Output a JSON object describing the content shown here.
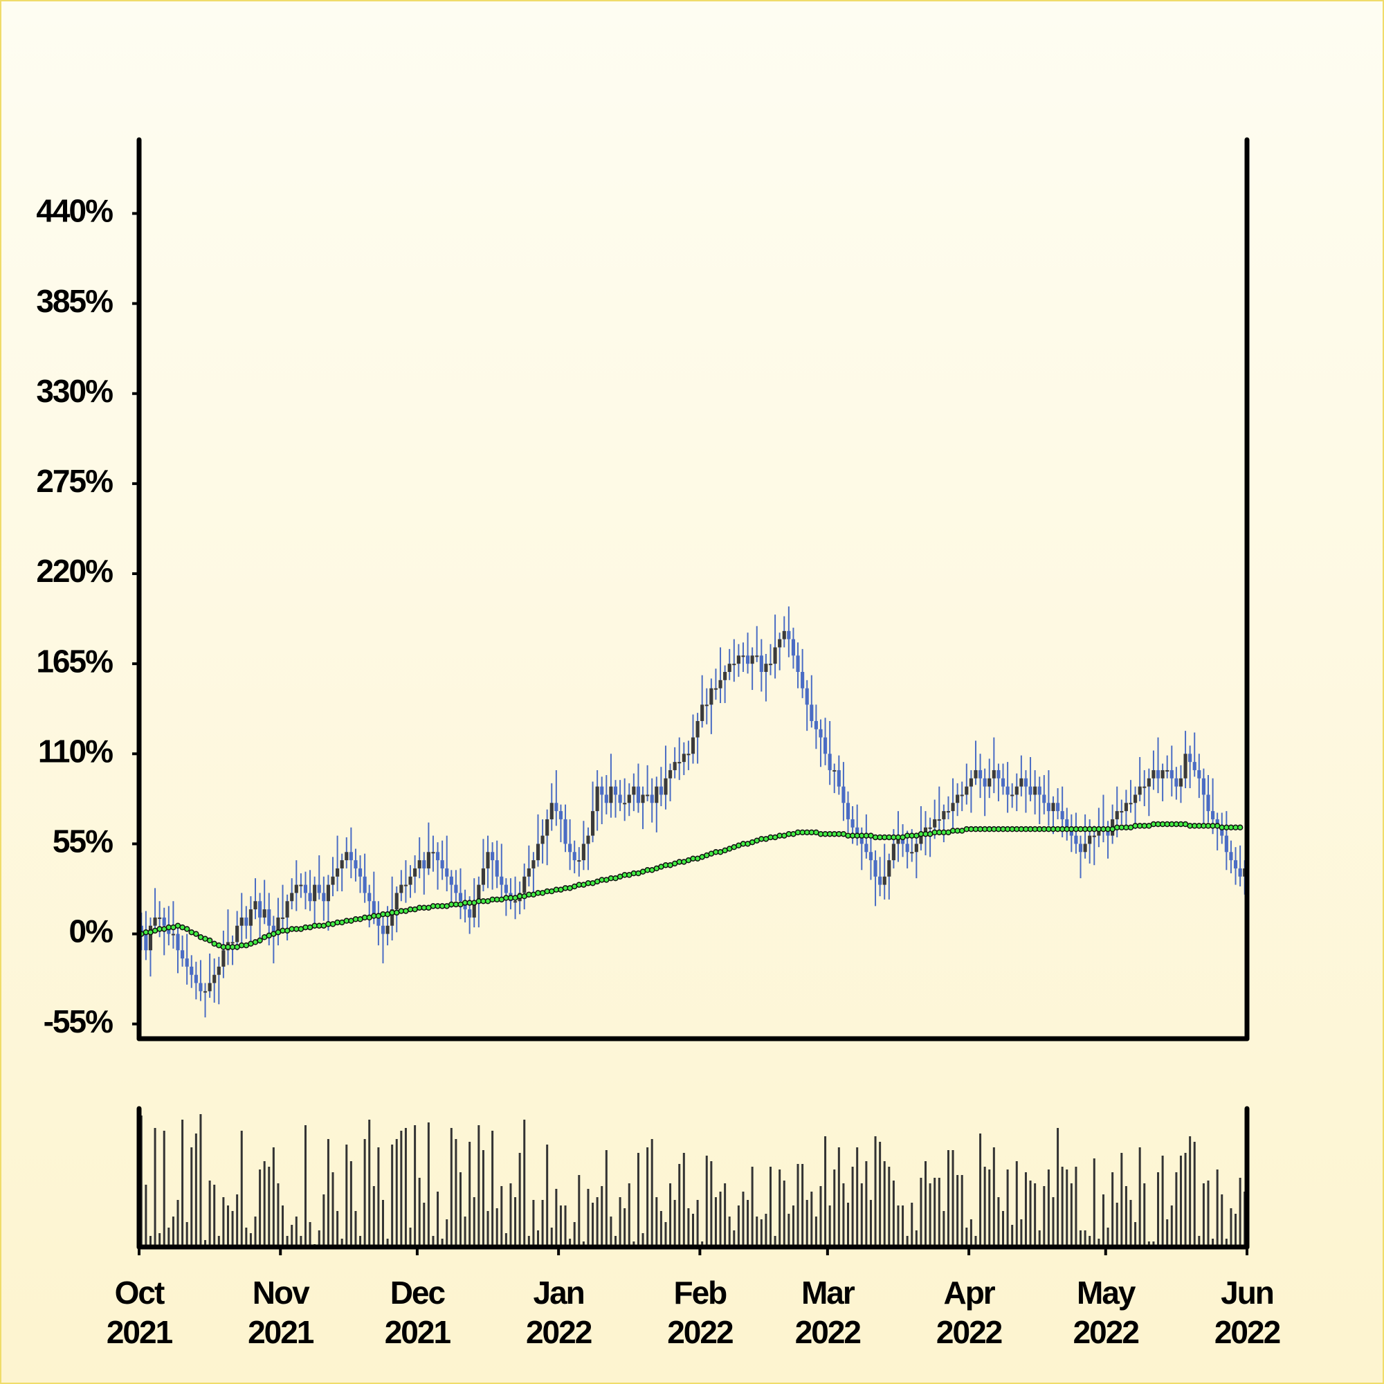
{
  "chart_data": {
    "type": "candlestick",
    "xlim": [
      0,
      243
    ],
    "xticks": [
      {
        "value": 0,
        "label": "Oct 2021"
      },
      {
        "value": 31,
        "label": "Nov 2021"
      },
      {
        "value": 61,
        "label": "Dec 2021"
      },
      {
        "value": 92,
        "label": "Jan 2022"
      },
      {
        "value": 123,
        "label": "Feb 2022"
      },
      {
        "value": 151,
        "label": "Mar 2022"
      },
      {
        "value": 182,
        "label": "Apr 2022"
      },
      {
        "value": 212,
        "label": "May 2022"
      },
      {
        "value": 243,
        "label": "Jun 2022"
      }
    ],
    "ylim": [
      -64,
      485
    ],
    "yticks": [
      {
        "value": -55,
        "label": "-55%"
      },
      {
        "value": 0,
        "label": "0%"
      },
      {
        "value": 55,
        "label": "55%"
      },
      {
        "value": 110,
        "label": "110%"
      },
      {
        "value": 165,
        "label": "165%"
      },
      {
        "value": 220,
        "label": "220%"
      },
      {
        "value": 275,
        "label": "275%"
      },
      {
        "value": 330,
        "label": "330%"
      },
      {
        "value": 385,
        "label": "385%"
      },
      {
        "value": 440,
        "label": "440%"
      }
    ],
    "volume_ylim": [
      0,
      100
    ],
    "up_color": "#3a3a3a",
    "down_color": "#4a6cc4",
    "wick_color": "#4a6cc4",
    "ma_color": "#44ee44",
    "volume_color": "#333333",
    "open": [
      5,
      0,
      -10,
      5,
      10,
      10,
      5,
      0,
      0,
      -10,
      -15,
      -20,
      -25,
      -30,
      -35,
      -35,
      -30,
      -25,
      -20,
      -10,
      -5,
      -5,
      5,
      10,
      5,
      15,
      20,
      10,
      15,
      5,
      0,
      10,
      10,
      20,
      25,
      30,
      30,
      25,
      20,
      30,
      25,
      20,
      30,
      35,
      40,
      45,
      50,
      45,
      40,
      35,
      25,
      20,
      10,
      5,
      0,
      5,
      15,
      25,
      30,
      30,
      35,
      40,
      45,
      40,
      50,
      50,
      45,
      40,
      35,
      30,
      25,
      20,
      15,
      10,
      20,
      30,
      40,
      50,
      45,
      35,
      30,
      25,
      20,
      20,
      25,
      35,
      40,
      45,
      55,
      60,
      70,
      80,
      75,
      70,
      55,
      50,
      45,
      45,
      55,
      60,
      75,
      90,
      85,
      80,
      90,
      85,
      80,
      80,
      85,
      90,
      80,
      85,
      85,
      80,
      90,
      85,
      95,
      100,
      105,
      105,
      110,
      110,
      120,
      130,
      140,
      140,
      150,
      150,
      155,
      160,
      165,
      165,
      170,
      170,
      165,
      170,
      170,
      160,
      165,
      165,
      175,
      180,
      185,
      180,
      170,
      160,
      150,
      140,
      130,
      125,
      120,
      110,
      100,
      100,
      90,
      80,
      70,
      65,
      60,
      55,
      50,
      45,
      35,
      30,
      35,
      45,
      55,
      60,
      55,
      50,
      50,
      55,
      60,
      65,
      65,
      70,
      70,
      75,
      75,
      80,
      85,
      85,
      90,
      95,
      100,
      95,
      90,
      95,
      100,
      95,
      90,
      85,
      85,
      90,
      95,
      90,
      85,
      90,
      85,
      80,
      75,
      80,
      75,
      70,
      65,
      60,
      55,
      50,
      55,
      60,
      60,
      65,
      65,
      60,
      70,
      75,
      75,
      80,
      80,
      85,
      90,
      90,
      95,
      100,
      95,
      100,
      100,
      95,
      90,
      95,
      110,
      105,
      100,
      95,
      85,
      75,
      70,
      65,
      60,
      50,
      45,
      40,
      35
    ],
    "high": [
      13,
      14,
      10,
      28,
      20,
      16,
      17,
      20,
      4,
      -1,
      0,
      -13,
      -17,
      -16,
      -30,
      -12,
      -15,
      -14,
      2,
      15,
      -1,
      14,
      25,
      17,
      23,
      34,
      25,
      33,
      25,
      11,
      22,
      30,
      24,
      34,
      45,
      37,
      38,
      39,
      35,
      48,
      35,
      36,
      47,
      60,
      49,
      59,
      65,
      52,
      48,
      49,
      30,
      38,
      20,
      11,
      17,
      35,
      29,
      39,
      45,
      42,
      48,
      59,
      50,
      68,
      60,
      56,
      57,
      60,
      39,
      39,
      40,
      27,
      23,
      34,
      35,
      58,
      60,
      56,
      57,
      55,
      34,
      34,
      35,
      32,
      43,
      54,
      50,
      73,
      70,
      76,
      92,
      100,
      79,
      79,
      70,
      57,
      53,
      69,
      65,
      93,
      100,
      96,
      97,
      110,
      94,
      94,
      95,
      92,
      98,
      104,
      90,
      103,
      95,
      96,
      102,
      115,
      104,
      114,
      120,
      117,
      118,
      134,
      135,
      158,
      150,
      156,
      162,
      175,
      164,
      174,
      180,
      177,
      178,
      184,
      175,
      188,
      180,
      171,
      177,
      195,
      184,
      194,
      200,
      187,
      178,
      174,
      155,
      158,
      140,
      131,
      132,
      130,
      104,
      109,
      105,
      87,
      78,
      79,
      65,
      73,
      60,
      51,
      47,
      55,
      49,
      64,
      75,
      67,
      63,
      64,
      60,
      78,
      75,
      71,
      82,
      90,
      79,
      84,
      95,
      92,
      93,
      104,
      100,
      118,
      110,
      101,
      107,
      120,
      104,
      104,
      105,
      92,
      98,
      109,
      100,
      108,
      100,
      96,
      97,
      100,
      84,
      89,
      90,
      77,
      73,
      74,
      60,
      73,
      70,
      66,
      77,
      85,
      69,
      79,
      90,
      82,
      88,
      94,
      90,
      108,
      100,
      101,
      112,
      120,
      104,
      109,
      115,
      102,
      103,
      124,
      115,
      123,
      110,
      101,
      97,
      95,
      74,
      74,
      75,
      57,
      53,
      54,
      45
    ],
    "low": [
      -10,
      -16,
      -26,
      1,
      -2,
      -13,
      -7,
      -9,
      -24,
      -20,
      -31,
      -33,
      -40,
      -41,
      -51,
      -39,
      -42,
      -43,
      -27,
      -19,
      -19,
      -10,
      -6,
      -3,
      -5,
      9,
      -6,
      6,
      -7,
      -18,
      -7,
      1,
      -4,
      15,
      14,
      22,
      15,
      14,
      4,
      21,
      8,
      2,
      23,
      26,
      26,
      40,
      34,
      32,
      25,
      19,
      4,
      6,
      -7,
      -18,
      -7,
      -4,
      1,
      20,
      19,
      22,
      25,
      34,
      24,
      36,
      38,
      27,
      33,
      26,
      16,
      20,
      9,
      7,
      0,
      4,
      4,
      26,
      28,
      27,
      28,
      21,
      11,
      15,
      9,
      12,
      15,
      29,
      24,
      41,
      43,
      42,
      63,
      66,
      56,
      50,
      39,
      37,
      35,
      39,
      39,
      56,
      63,
      67,
      73,
      71,
      71,
      75,
      69,
      72,
      75,
      74,
      64,
      81,
      68,
      62,
      78,
      76,
      81,
      95,
      94,
      97,
      100,
      104,
      104,
      126,
      128,
      122,
      143,
      141,
      141,
      155,
      154,
      157,
      160,
      159,
      149,
      166,
      148,
      142,
      158,
      156,
      161,
      175,
      169,
      162,
      150,
      144,
      124,
      126,
      113,
      102,
      103,
      91,
      86,
      85,
      69,
      62,
      55,
      54,
      39,
      46,
      33,
      17,
      23,
      21,
      21,
      40,
      44,
      47,
      40,
      44,
      34,
      51,
      48,
      47,
      58,
      61,
      56,
      70,
      64,
      72,
      75,
      79,
      74,
      91,
      83,
      72,
      83,
      86,
      81,
      85,
      74,
      77,
      75,
      84,
      74,
      81,
      73,
      67,
      73,
      66,
      61,
      70,
      59,
      57,
      50,
      49,
      34,
      46,
      43,
      42,
      53,
      56,
      46,
      55,
      59,
      67,
      65,
      74,
      64,
      81,
      78,
      72,
      88,
      86,
      81,
      95,
      84,
      82,
      80,
      89,
      89,
      96,
      83,
      67,
      68,
      61,
      51,
      55,
      39,
      37,
      30,
      29,
      24
    ],
    "close": [
      0,
      -10,
      5,
      10,
      10,
      5,
      0,
      0,
      -10,
      -15,
      -20,
      -25,
      -30,
      -35,
      -35,
      -30,
      -25,
      -20,
      -10,
      -5,
      -5,
      5,
      10,
      5,
      15,
      20,
      10,
      15,
      5,
      0,
      10,
      10,
      20,
      25,
      30,
      30,
      25,
      20,
      30,
      25,
      20,
      30,
      35,
      40,
      45,
      50,
      45,
      40,
      35,
      25,
      20,
      10,
      5,
      0,
      5,
      15,
      25,
      30,
      30,
      35,
      40,
      45,
      40,
      50,
      50,
      45,
      40,
      35,
      30,
      25,
      20,
      15,
      10,
      20,
      30,
      40,
      50,
      45,
      35,
      30,
      25,
      20,
      20,
      25,
      35,
      40,
      45,
      55,
      60,
      70,
      80,
      75,
      70,
      55,
      50,
      45,
      45,
      55,
      60,
      75,
      90,
      85,
      80,
      90,
      85,
      80,
      80,
      85,
      90,
      80,
      85,
      85,
      80,
      90,
      85,
      95,
      100,
      105,
      105,
      110,
      110,
      120,
      130,
      140,
      140,
      150,
      150,
      155,
      160,
      165,
      165,
      170,
      170,
      165,
      170,
      170,
      160,
      165,
      165,
      175,
      180,
      185,
      180,
      170,
      160,
      150,
      140,
      130,
      125,
      120,
      110,
      100,
      100,
      90,
      80,
      70,
      65,
      60,
      55,
      50,
      45,
      35,
      30,
      35,
      45,
      55,
      60,
      55,
      50,
      50,
      55,
      60,
      65,
      65,
      70,
      70,
      75,
      75,
      80,
      85,
      85,
      90,
      95,
      100,
      95,
      90,
      95,
      100,
      95,
      90,
      85,
      85,
      90,
      95,
      90,
      85,
      90,
      85,
      80,
      75,
      80,
      75,
      70,
      65,
      60,
      55,
      50,
      55,
      60,
      60,
      65,
      65,
      60,
      70,
      75,
      75,
      80,
      80,
      85,
      90,
      90,
      95,
      100,
      95,
      100,
      100,
      95,
      90,
      95,
      110,
      105,
      100,
      95,
      85,
      75,
      70,
      65,
      60,
      50,
      45,
      40,
      35,
      40
    ],
    "moving_average": [
      0,
      1,
      1,
      2,
      3,
      3,
      4,
      4,
      5,
      4,
      3,
      1,
      0,
      -2,
      -3,
      -4,
      -6,
      -7,
      -8,
      -8,
      -8,
      -8,
      -7,
      -7,
      -6,
      -5,
      -4,
      -2,
      -1,
      0,
      1,
      2,
      2,
      3,
      3,
      3,
      4,
      4,
      5,
      5,
      5,
      6,
      6,
      7,
      7,
      8,
      8,
      9,
      9,
      10,
      10,
      11,
      11,
      12,
      12,
      13,
      13,
      14,
      14,
      15,
      15,
      16,
      16,
      16,
      17,
      17,
      17,
      17,
      18,
      18,
      18,
      19,
      19,
      19,
      20,
      20,
      20,
      21,
      21,
      21,
      22,
      22,
      22,
      23,
      23,
      24,
      24,
      25,
      25,
      26,
      26,
      27,
      27,
      28,
      28,
      29,
      30,
      30,
      31,
      31,
      32,
      33,
      33,
      34,
      34,
      35,
      36,
      36,
      37,
      37,
      38,
      39,
      39,
      40,
      41,
      42,
      42,
      43,
      44,
      44,
      45,
      46,
      46,
      47,
      48,
      49,
      50,
      50,
      51,
      52,
      53,
      54,
      55,
      55,
      56,
      57,
      58,
      58,
      59,
      59,
      60,
      60,
      61,
      61,
      62,
      62,
      62,
      62,
      62,
      61,
      61,
      61,
      61,
      61,
      61,
      60,
      60,
      60,
      60,
      60,
      60,
      59,
      59,
      59,
      59,
      59,
      59,
      59,
      60,
      60,
      60,
      61,
      61,
      61,
      62,
      62,
      62,
      62,
      63,
      63,
      63,
      64,
      64,
      64,
      64,
      64,
      64,
      64,
      64,
      64,
      64,
      64,
      64,
      64,
      64,
      64,
      64,
      64,
      64,
      64,
      64,
      64,
      64,
      64,
      64,
      64,
      64,
      64,
      64,
      64,
      64,
      64,
      64,
      64,
      65,
      65,
      65,
      65,
      66,
      66,
      66,
      66,
      67,
      67,
      67,
      67,
      67,
      67,
      67,
      67,
      66,
      66,
      66,
      66,
      66,
      66,
      66,
      65,
      65,
      65,
      65,
      65
    ],
    "volume": [
      95,
      45,
      8,
      86,
      10,
      84,
      14,
      22,
      34,
      92,
      18,
      72,
      82,
      96,
      5,
      48,
      45,
      8,
      36,
      30,
      26,
      38,
      84,
      14,
      10,
      22,
      56,
      62,
      58,
      72,
      46,
      30,
      8,
      16,
      22,
      8,
      88,
      18,
      2,
      12,
      38,
      78,
      54,
      26,
      6,
      74,
      62,
      26,
      8,
      78,
      92,
      44,
      72,
      34,
      6,
      74,
      78,
      84,
      86,
      14,
      88,
      50,
      32,
      90,
      8,
      40,
      6,
      20,
      86,
      78,
      54,
      22,
      76,
      36,
      88,
      70,
      26,
      84,
      28,
      44,
      10,
      46,
      36,
      68,
      92,
      8,
      34,
      12,
      34,
      74,
      14,
      42,
      30,
      30,
      6,
      18,
      52,
      4,
      42,
      32,
      36,
      44,
      70,
      22,
      8,
      36,
      28,
      46,
      4,
      68,
      10,
      72,
      78,
      36,
      26,
      18,
      46,
      34,
      60,
      68,
      28,
      24,
      34,
      4,
      66,
      62,
      36,
      40,
      46,
      22,
      12,
      30,
      40,
      34,
      58,
      22,
      20,
      24,
      58,
      8,
      56,
      48,
      24,
      30,
      60,
      60,
      34,
      40,
      22,
      44,
      80,
      30,
      56,
      72,
      46,
      32,
      58,
      72,
      46,
      62,
      34,
      80,
      76,
      62,
      58,
      48,
      30,
      30,
      8,
      32,
      12,
      50,
      62,
      46,
      50,
      50,
      26,
      70,
      70,
      52,
      52,
      14,
      20,
      8,
      82,
      58,
      56,
      72,
      36,
      26,
      56,
      16,
      62,
      20,
      54,
      48,
      46,
      12,
      44,
      56,
      36,
      86,
      58,
      56,
      46,
      58,
      12,
      12,
      8,
      64,
      6,
      38,
      14,
      54,
      32,
      68,
      44,
      34,
      18,
      72,
      46,
      4,
      4,
      54,
      66,
      20,
      30,
      54,
      66,
      68,
      80,
      76,
      8,
      46,
      48,
      6,
      56,
      38,
      6,
      28,
      24,
      50,
      40
    ]
  }
}
